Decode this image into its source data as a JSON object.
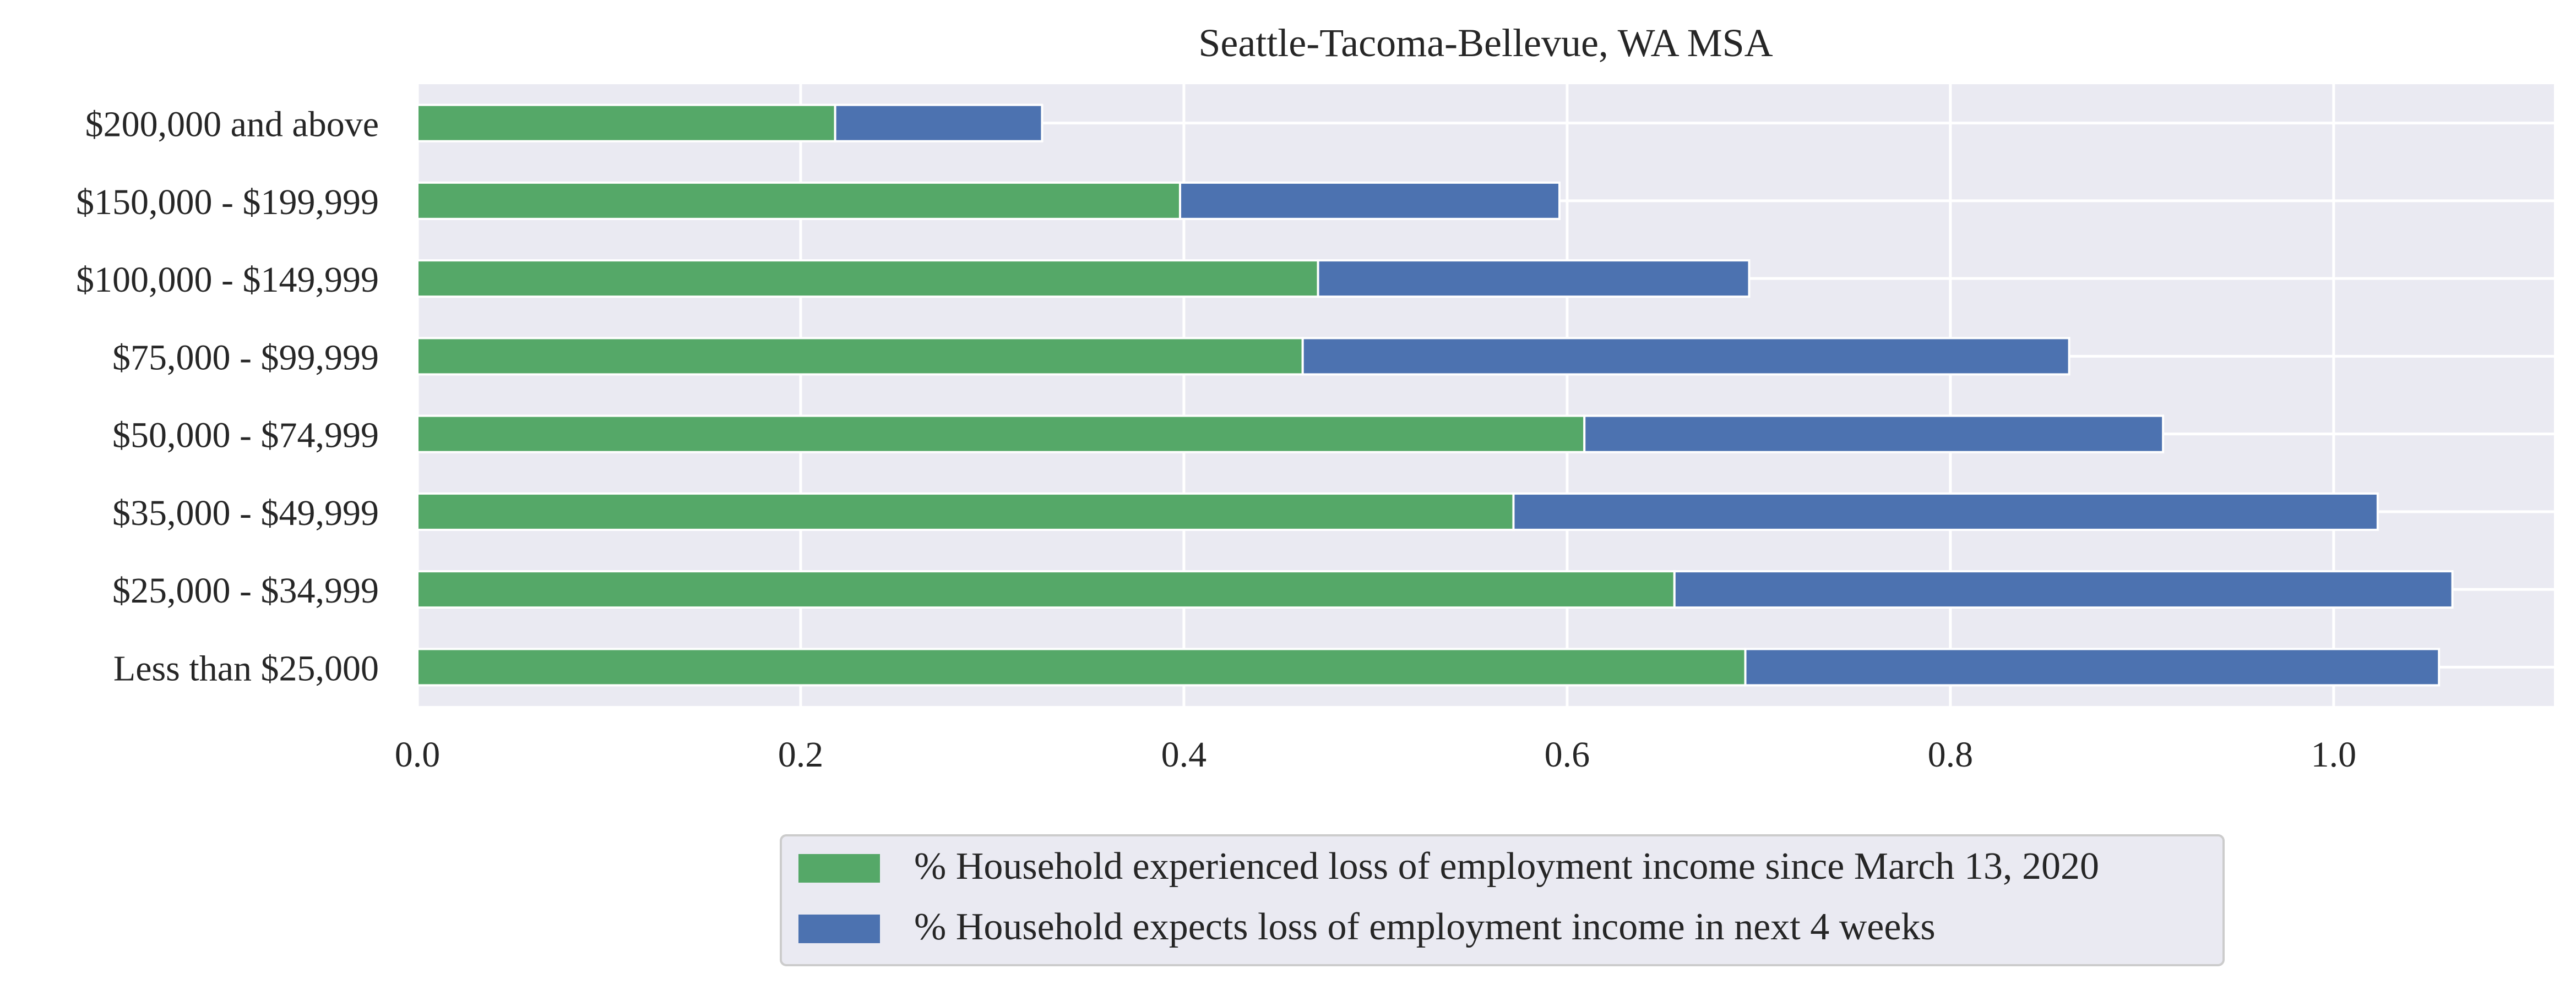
{
  "chart_data": {
    "type": "bar",
    "orientation": "horizontal",
    "stacked": true,
    "title": "Seattle-Tacoma-Bellevue, WA MSA",
    "xlabel": "",
    "ylabel": "",
    "categories": [
      "$200,000 and above",
      "$150,000 - $199,999",
      "$100,000 - $149,999",
      "$75,000 - $99,999",
      "$50,000 - $74,999",
      "$35,000 - $49,999",
      "$25,000 - $34,999",
      "Less than $25,000"
    ],
    "series": [
      {
        "name": "% Household experienced loss of employment income since March 13, 2020",
        "color": "#55a868",
        "values": [
          0.218,
          0.398,
          0.47,
          0.462,
          0.609,
          0.572,
          0.656,
          0.693
        ]
      },
      {
        "name": "% Household expects loss of employment income in next 4 weeks",
        "color": "#4c72b0",
        "values": [
          0.108,
          0.198,
          0.225,
          0.4,
          0.302,
          0.451,
          0.406,
          0.362
        ]
      }
    ],
    "xlim": [
      0,
      1.115
    ],
    "xticks": [
      "0.0",
      "0.2",
      "0.4",
      "0.6",
      "0.8",
      "1.0"
    ],
    "grid": true,
    "legend_position": "bottom-center",
    "background_color": "#eaeaf2",
    "grid_color": "#ffffff"
  }
}
